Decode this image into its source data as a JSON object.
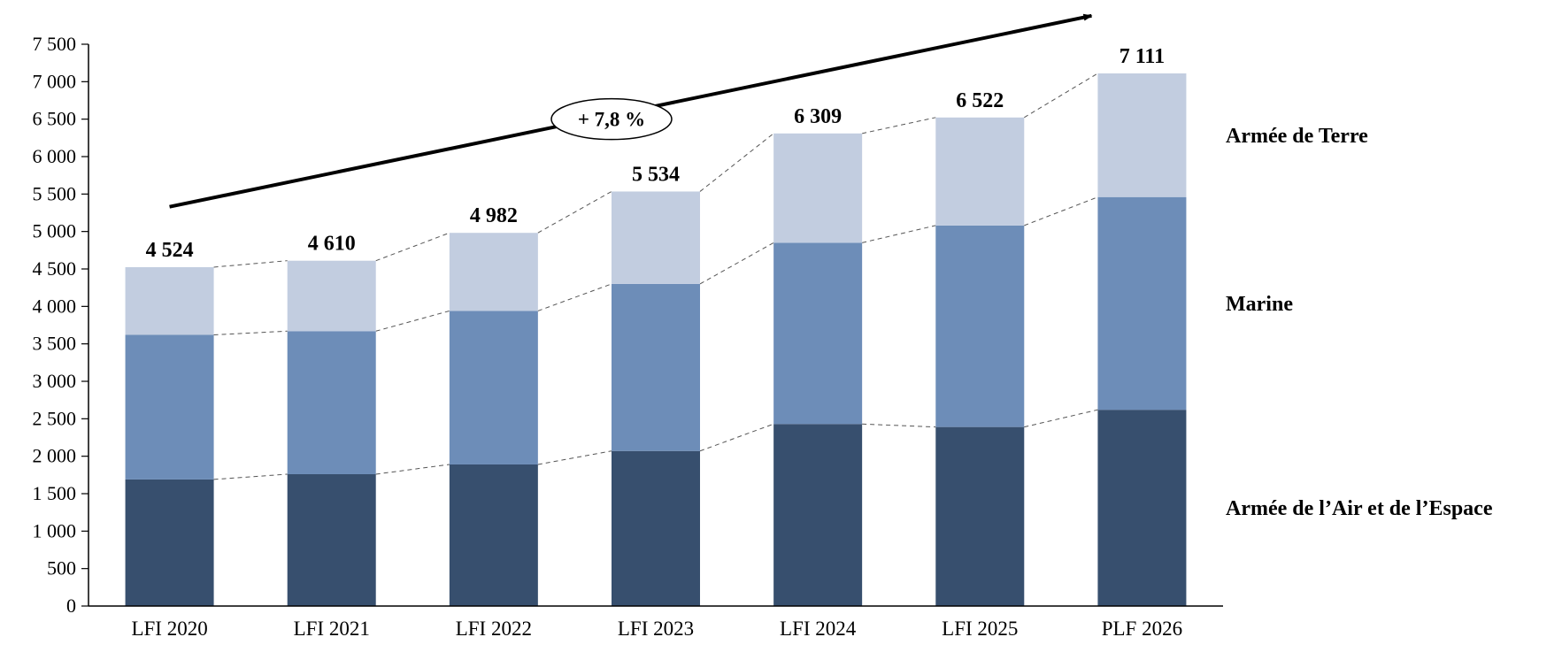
{
  "chart_data": {
    "type": "bar",
    "stacked": true,
    "categories": [
      "LFI 2020",
      "LFI 2021",
      "LFI 2022",
      "LFI 2023",
      "LFI 2024",
      "LFI 2025",
      "PLF 2026"
    ],
    "series": [
      {
        "name": "Armée de l’Air et de l’Espace",
        "color": "#374f6e",
        "values": [
          1690,
          1760,
          1890,
          2070,
          2430,
          2390,
          2620
        ]
      },
      {
        "name": "Marine",
        "color": "#6d8db8",
        "values": [
          1930,
          1910,
          2050,
          2230,
          2420,
          2690,
          2840
        ]
      },
      {
        "name": "Armée de Terre",
        "color": "#c2cde0",
        "values": [
          904,
          940,
          1042,
          1234,
          1459,
          1442,
          1651
        ]
      }
    ],
    "totals": [
      4524,
      4610,
      4982,
      5534,
      6309,
      6522,
      7111
    ],
    "total_labels": [
      "4 524",
      "4 610",
      "4 982",
      "5 534",
      "6 309",
      "6 522",
      "7 111"
    ],
    "ylim": [
      0,
      7500
    ],
    "yticks": [
      0,
      500,
      1000,
      1500,
      2000,
      2500,
      3000,
      3500,
      4000,
      4500,
      5000,
      5500,
      6000,
      6500,
      7000,
      7500
    ],
    "ytick_labels": [
      "0",
      "500",
      "1 000",
      "1 500",
      "2 000",
      "2 500",
      "3 000",
      "3 500",
      "4 000",
      "4 500",
      "5 000",
      "5 500",
      "6 000",
      "6 500",
      "7 000",
      "7 500"
    ],
    "annotation": {
      "text": "+ 7,8 %",
      "style": "trend-arrow"
    },
    "grid": false,
    "legend": "right, series names beside bars"
  }
}
